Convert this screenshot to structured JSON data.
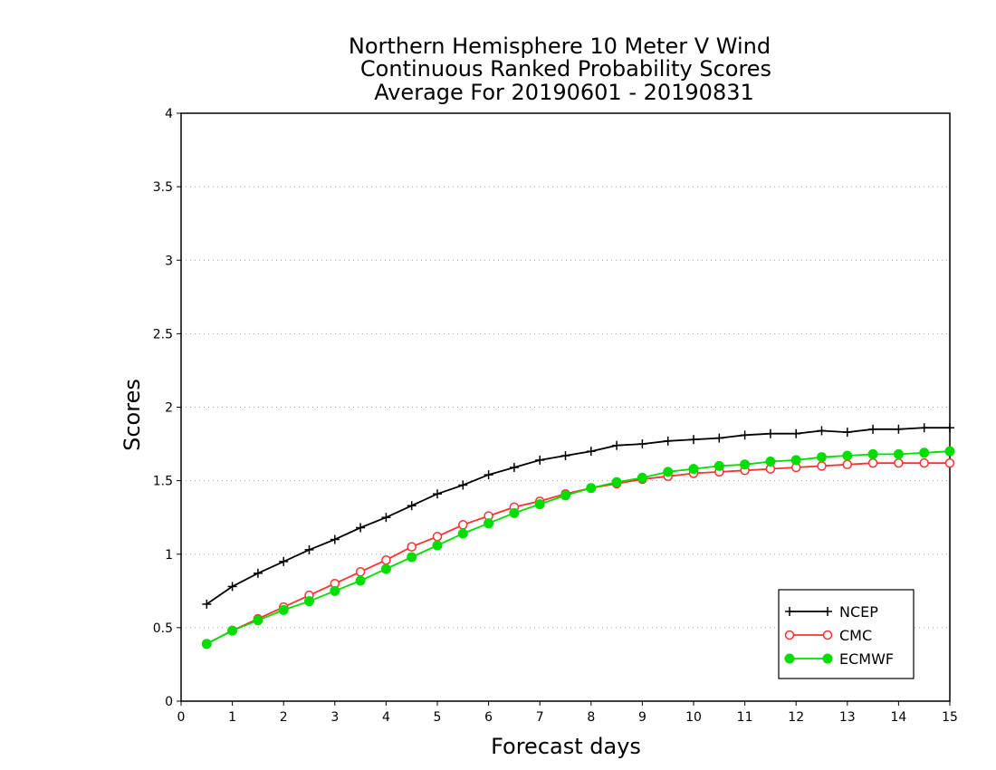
{
  "chart_data": {
    "type": "line",
    "title": [
      "Northern Hemisphere 10 Meter V Wind",
      "Continuous Ranked Probability Scores",
      "Average For 20190601 - 20190831"
    ],
    "xlabel": "Forecast days",
    "ylabel": "Scores",
    "xlim": [
      0,
      15
    ],
    "ylim": [
      0,
      4
    ],
    "xticks": [
      0,
      1,
      2,
      3,
      4,
      5,
      6,
      7,
      8,
      9,
      10,
      11,
      12,
      13,
      14,
      15
    ],
    "xtick_labels": [
      "0",
      "1",
      "2",
      "3",
      "4",
      "5",
      "6",
      "7",
      "8",
      "9",
      "10",
      "11",
      "12",
      "13",
      "14",
      "15"
    ],
    "yticks": [
      0,
      0.5,
      1,
      1.5,
      2,
      2.5,
      3,
      3.5,
      4
    ],
    "ytick_labels": [
      "0",
      "0.5",
      "1",
      "1.5",
      "2",
      "2.5",
      "3",
      "3.5",
      "4"
    ],
    "grid": "horizontal dotted",
    "legend_position": "bottom-right",
    "x": [
      0.5,
      1,
      1.5,
      2,
      2.5,
      3,
      3.5,
      4,
      4.5,
      5,
      5.5,
      6,
      6.5,
      7,
      7.5,
      8,
      8.5,
      9,
      9.5,
      10,
      10.5,
      11,
      11.5,
      12,
      12.5,
      13,
      13.5,
      14,
      14.5,
      15
    ],
    "series": [
      {
        "name": "NCEP",
        "color": "#000000",
        "marker": "plus",
        "values": [
          0.66,
          0.78,
          0.87,
          0.95,
          1.03,
          1.1,
          1.18,
          1.25,
          1.33,
          1.41,
          1.47,
          1.54,
          1.59,
          1.64,
          1.67,
          1.7,
          1.74,
          1.75,
          1.77,
          1.78,
          1.79,
          1.81,
          1.82,
          1.82,
          1.84,
          1.83,
          1.85,
          1.85,
          1.86,
          1.86
        ]
      },
      {
        "name": "CMC",
        "color": "#ff3030",
        "marker": "open-circle",
        "values": [
          0.39,
          0.48,
          0.56,
          0.64,
          0.72,
          0.8,
          0.88,
          0.96,
          1.05,
          1.12,
          1.2,
          1.26,
          1.32,
          1.36,
          1.41,
          1.45,
          1.48,
          1.51,
          1.53,
          1.55,
          1.56,
          1.57,
          1.58,
          1.59,
          1.6,
          1.61,
          1.62,
          1.62,
          1.62,
          1.62
        ]
      },
      {
        "name": "ECMWF",
        "color": "#00dd00",
        "marker": "filled-circle",
        "values": [
          0.39,
          0.48,
          0.55,
          0.62,
          0.68,
          0.75,
          0.82,
          0.9,
          0.98,
          1.06,
          1.14,
          1.21,
          1.28,
          1.34,
          1.4,
          1.45,
          1.49,
          1.52,
          1.56,
          1.58,
          1.6,
          1.61,
          1.63,
          1.64,
          1.66,
          1.67,
          1.68,
          1.68,
          1.69,
          1.7
        ]
      }
    ]
  }
}
